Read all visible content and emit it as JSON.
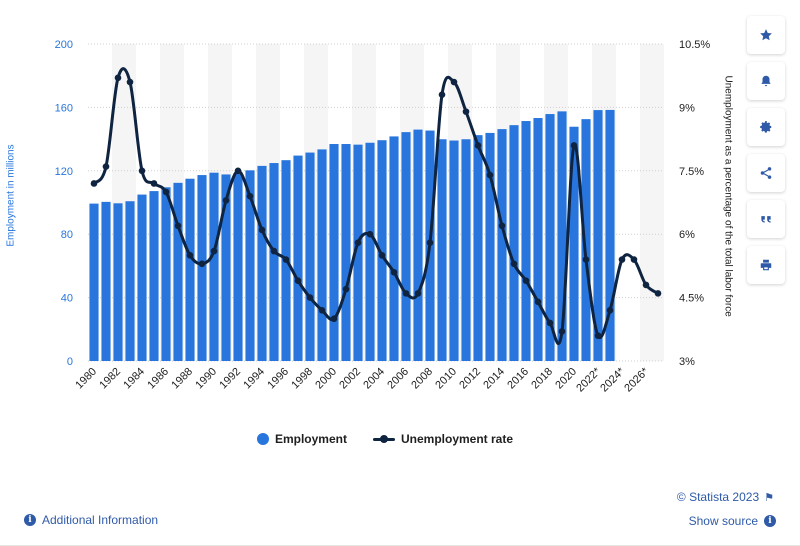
{
  "chart_data": {
    "type": "bar+line",
    "categories": [
      "1980",
      "1981",
      "1982",
      "1983",
      "1984",
      "1985",
      "1986",
      "1987",
      "1988",
      "1989",
      "1990",
      "1991",
      "1992",
      "1993",
      "1994",
      "1995",
      "1996",
      "1997",
      "1998",
      "1999",
      "2000",
      "2001",
      "2002",
      "2003",
      "2004",
      "2005",
      "2006",
      "2007",
      "2008",
      "2009",
      "2010",
      "2011",
      "2012",
      "2013",
      "2014",
      "2015",
      "2016",
      "2017",
      "2018",
      "2019",
      "2020",
      "2021",
      "2022*",
      "2023*",
      "2024*",
      "2025*",
      "2026*",
      "2027*"
    ],
    "x_tick_labels": [
      "1980",
      "1982",
      "1984",
      "1986",
      "1988",
      "1990",
      "1992",
      "1994",
      "1996",
      "1998",
      "2000",
      "2002",
      "2004",
      "2006",
      "2008",
      "2010",
      "2012",
      "2014",
      "2016",
      "2018",
      "2020",
      "2022*",
      "2024*",
      "2026*"
    ],
    "series": [
      {
        "name": "Employment",
        "type": "bar",
        "axis": "left",
        "color": "#2876dd",
        "values": [
          99.3,
          100.4,
          99.5,
          100.8,
          105.0,
          107.2,
          109.6,
          112.4,
          115.0,
          117.3,
          118.8,
          117.7,
          118.5,
          120.3,
          123.1,
          124.9,
          126.7,
          129.6,
          131.5,
          133.5,
          136.9,
          136.9,
          136.5,
          137.7,
          139.3,
          141.7,
          144.4,
          146.0,
          145.4,
          139.9,
          139.1,
          139.9,
          142.5,
          143.9,
          146.3,
          148.8,
          151.4,
          153.3,
          155.8,
          157.5,
          147.8,
          152.6,
          158.3,
          158.4,
          null,
          null,
          null,
          null
        ]
      },
      {
        "name": "Unemployment rate",
        "type": "line",
        "axis": "right",
        "color": "#0f2440",
        "values": [
          7.2,
          7.6,
          9.7,
          9.6,
          7.5,
          7.2,
          7.0,
          6.2,
          5.5,
          5.3,
          5.6,
          6.8,
          7.5,
          6.9,
          6.1,
          5.6,
          5.4,
          4.9,
          4.5,
          4.2,
          4.0,
          4.7,
          5.8,
          6.0,
          5.5,
          5.1,
          4.6,
          4.6,
          5.8,
          9.3,
          9.6,
          8.9,
          8.1,
          7.4,
          6.2,
          5.3,
          4.9,
          4.4,
          3.9,
          3.7,
          8.1,
          5.4,
          3.6,
          4.2,
          5.4,
          5.4,
          4.8,
          4.6
        ]
      }
    ],
    "y_left": {
      "label": "Employment in millions",
      "ticks": [
        0,
        40,
        80,
        120,
        160,
        200
      ],
      "ylim": [
        0,
        200
      ]
    },
    "y_right": {
      "label": "Unemployment as a percentage of the total labor force",
      "ticks": [
        "3%",
        "4.5%",
        "6%",
        "7.5%",
        "9%",
        "10.5%"
      ],
      "ylim": [
        3,
        10.5
      ]
    },
    "legend_position": "bottom",
    "grid": true
  },
  "legend": {
    "employment": "Employment",
    "unemployment": "Unemployment rate"
  },
  "footer": {
    "credit": "© Statista 2023",
    "additional_info": "Additional Information",
    "show_source": "Show source"
  },
  "toolbar": {
    "icons": [
      "star-icon",
      "bell-icon",
      "gear-icon",
      "share-icon",
      "quote-icon",
      "print-icon"
    ]
  },
  "colors": {
    "bar": "#2876dd",
    "line": "#0f2440",
    "link": "#2f5aa8"
  }
}
